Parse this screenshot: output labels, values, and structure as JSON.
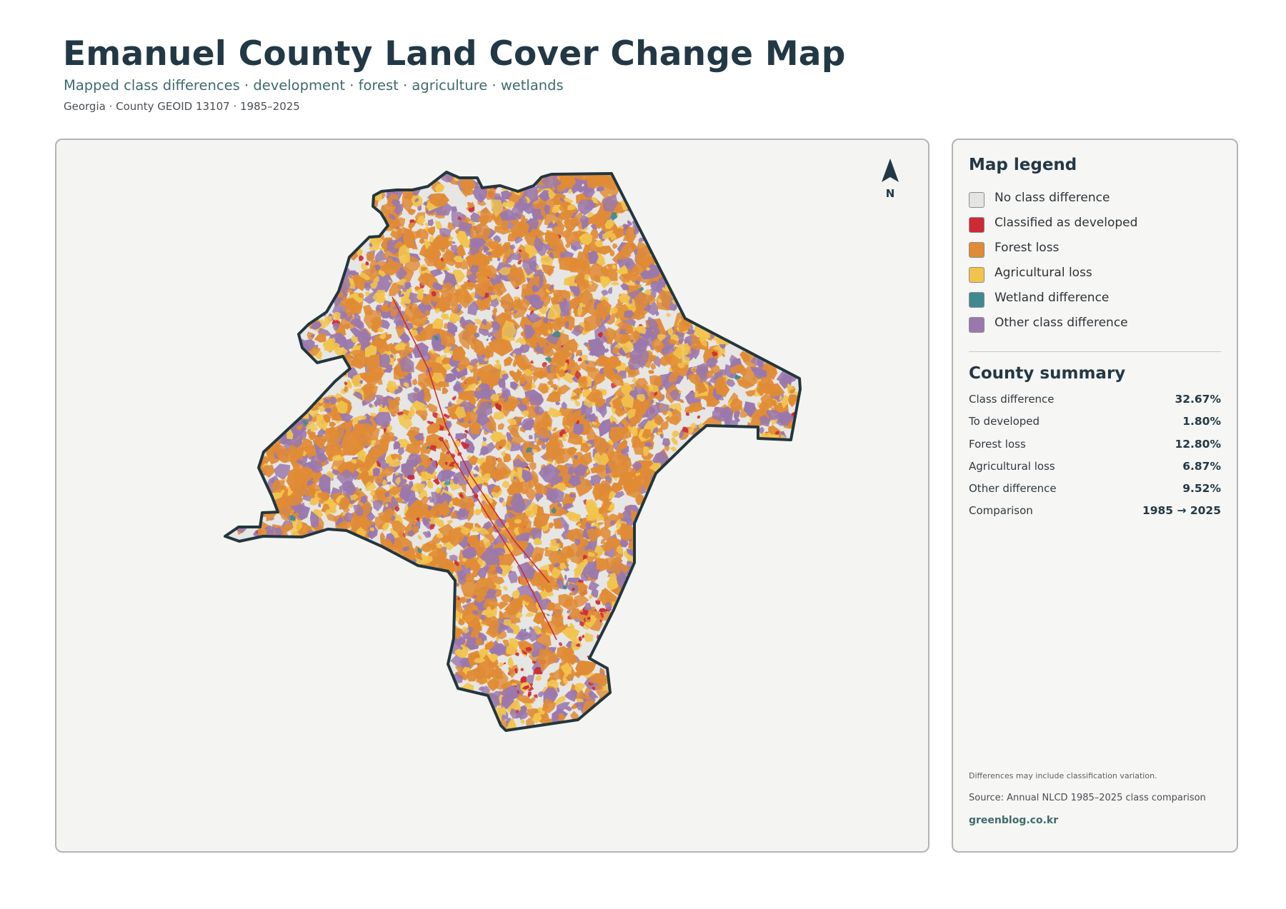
{
  "header": {
    "title": "Emanuel County Land Cover Change Map",
    "subtitle": "Mapped class differences · development · forest · agriculture · wetlands",
    "meta": "Georgia · County GEOID 13107 · 1985–2025"
  },
  "map": {
    "north_label": "N",
    "boundary_color": "#22363e",
    "background_color": "#e6e6e4",
    "class_mix": [
      {
        "key": "forest_loss",
        "share": 0.42
      },
      {
        "key": "agricultural_loss",
        "share": 0.23
      },
      {
        "key": "other_difference",
        "share": 0.3
      },
      {
        "key": "developed",
        "share": 0.04
      },
      {
        "key": "wetland",
        "share": 0.01
      }
    ]
  },
  "legend": {
    "title": "Map legend",
    "items": [
      {
        "key": "none",
        "label": "No class difference",
        "color": "#e4e4e2"
      },
      {
        "key": "developed",
        "label": "Classified as developed",
        "color": "#cc2a36"
      },
      {
        "key": "forest_loss",
        "label": "Forest loss",
        "color": "#e08b35"
      },
      {
        "key": "agricultural_loss",
        "label": "Agricultural loss",
        "color": "#f2c44c"
      },
      {
        "key": "wetland",
        "label": "Wetland difference",
        "color": "#3f8a8e"
      },
      {
        "key": "other_difference",
        "label": "Other class difference",
        "color": "#9a78ad"
      }
    ]
  },
  "summary": {
    "title": "County summary",
    "rows": [
      {
        "label": "Class difference",
        "value": "32.67%"
      },
      {
        "label": "To developed",
        "value": "1.80%"
      },
      {
        "label": "Forest loss",
        "value": "12.80%"
      },
      {
        "label": "Agricultural loss",
        "value": "6.87%"
      },
      {
        "label": "Other difference",
        "value": "9.52%"
      },
      {
        "label": "Comparison",
        "value": "1985 → 2025"
      }
    ]
  },
  "footer": {
    "note": "Differences may include classification variation.",
    "source": "Source: Annual NLCD 1985–2025 class comparison",
    "site": "greenblog.co.kr"
  }
}
